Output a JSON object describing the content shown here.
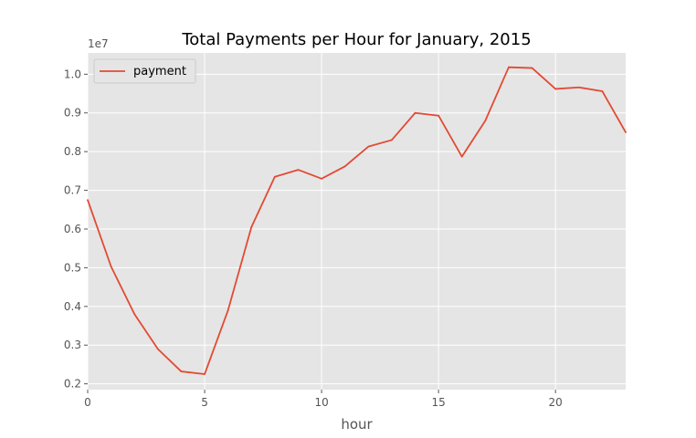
{
  "chart_data": {
    "type": "line",
    "title": "Total Payments per Hour for January, 2015",
    "xlabel": "hour",
    "ylabel": "",
    "y_offset_label": "1e7",
    "xlim": [
      0,
      23
    ],
    "ylim": [
      0.185,
      1.055
    ],
    "x_ticks": [
      0,
      5,
      10,
      15,
      20
    ],
    "y_ticks": [
      0.2,
      0.3,
      0.4,
      0.5,
      0.6,
      0.7,
      0.8,
      0.9,
      1.0
    ],
    "grid": true,
    "legend_position": "upper-left",
    "series": [
      {
        "name": "payment",
        "color": "#e24a33",
        "x": [
          0,
          1,
          2,
          3,
          4,
          5,
          6,
          7,
          8,
          9,
          10,
          11,
          12,
          13,
          14,
          15,
          16,
          17,
          18,
          19,
          20,
          21,
          22,
          23
        ],
        "values": [
          0.675,
          0.503,
          0.38,
          0.29,
          0.232,
          0.225,
          0.39,
          0.605,
          0.735,
          0.753,
          0.73,
          0.762,
          0.813,
          0.83,
          0.9,
          0.893,
          0.787,
          0.88,
          1.018,
          1.016,
          0.962,
          0.966,
          0.956,
          0.85
        ]
      }
    ]
  }
}
